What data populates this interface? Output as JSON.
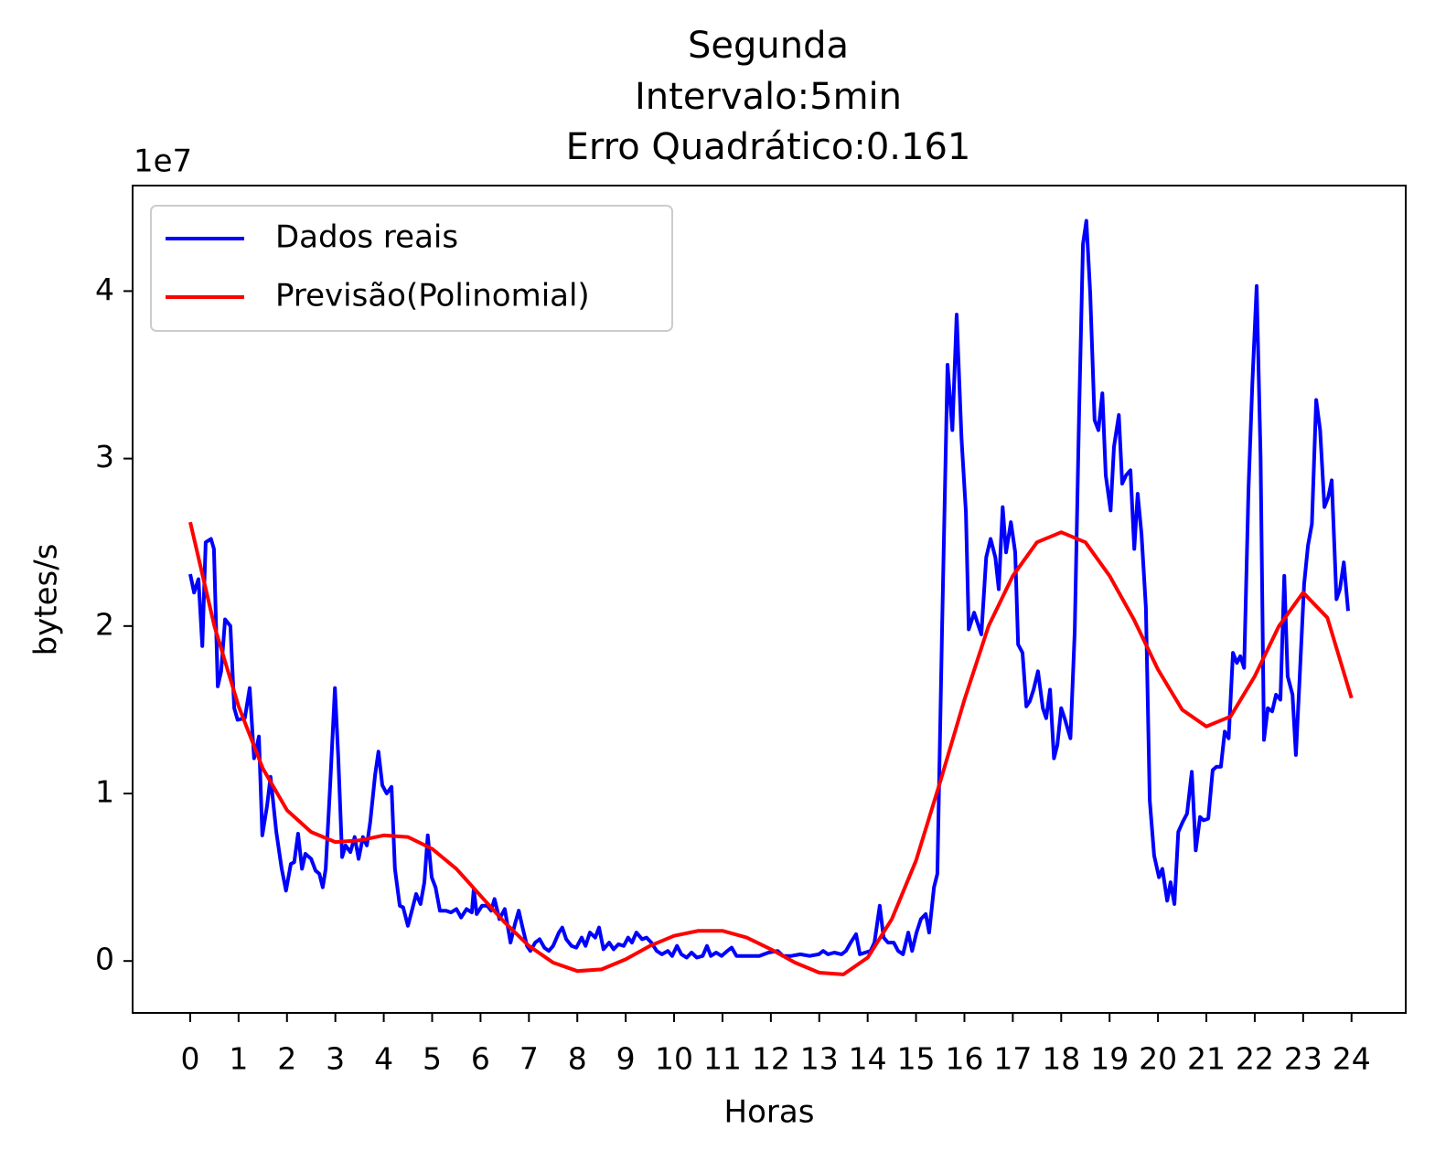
{
  "chart_data": {
    "type": "line",
    "title": [
      "Segunda",
      "Intervalo:5min",
      "Erro Quadrático:0.161"
    ],
    "x_label": "Horas",
    "y_label": "bytes/s",
    "y_offset_text": "1e7",
    "xlim": [
      -1.19,
      25.12
    ],
    "ylim": [
      -0.31,
      4.63
    ],
    "xticks": [
      0,
      1,
      2,
      3,
      4,
      5,
      6,
      7,
      8,
      9,
      10,
      11,
      12,
      13,
      14,
      15,
      16,
      17,
      18,
      19,
      20,
      21,
      22,
      23,
      24
    ],
    "yticks": [
      0,
      1,
      2,
      3,
      4
    ],
    "grid": false,
    "legend": "upper left",
    "series": [
      {
        "name": "Dados reais",
        "color": "#0000ff",
        "x": [
          0,
          0.08,
          0.17,
          0.25,
          0.32,
          0.43,
          0.49,
          0.57,
          0.64,
          0.72,
          0.83,
          0.91,
          0.98,
          1.13,
          1.23,
          1.32,
          1.42,
          1.49,
          1.59,
          1.66,
          1.78,
          1.89,
          1.98,
          2.08,
          2.15,
          2.23,
          2.31,
          2.38,
          2.5,
          2.59,
          2.67,
          2.74,
          2.8,
          2.89,
          2.99,
          3.06,
          3.14,
          3.21,
          3.31,
          3.4,
          3.48,
          3.57,
          3.65,
          3.72,
          3.82,
          3.89,
          3.97,
          4.06,
          4.16,
          4.23,
          4.33,
          4.4,
          4.5,
          4.59,
          4.67,
          4.76,
          4.84,
          4.91,
          4.99,
          5.07,
          5.16,
          5.29,
          5.39,
          5.5,
          5.6,
          5.71,
          5.82,
          5.86,
          5.92,
          6.03,
          6.14,
          6.22,
          6.29,
          6.39,
          6.5,
          6.62,
          6.71,
          6.79,
          6.86,
          6.96,
          7.03,
          7.13,
          7.22,
          7.32,
          7.41,
          7.5,
          7.62,
          7.69,
          7.77,
          7.88,
          7.98,
          8.09,
          8.17,
          8.26,
          8.37,
          8.45,
          8.54,
          8.66,
          8.75,
          8.85,
          8.96,
          9.05,
          9.13,
          9.22,
          9.34,
          9.43,
          9.53,
          9.64,
          9.75,
          9.87,
          9.96,
          10.06,
          10.15,
          10.26,
          10.36,
          10.47,
          10.59,
          10.68,
          10.76,
          10.87,
          10.98,
          11.1,
          11.19,
          11.29,
          11.42,
          11.57,
          11.76,
          11.95,
          12.14,
          12.25,
          12.42,
          12.61,
          12.8,
          12.99,
          13.08,
          13.18,
          13.31,
          13.46,
          13.55,
          13.65,
          13.76,
          13.84,
          13.95,
          14.06,
          14.14,
          14.25,
          14.33,
          14.42,
          14.54,
          14.63,
          14.73,
          14.84,
          14.92,
          15.01,
          15.1,
          15.2,
          15.27,
          15.37,
          15.44,
          15.54,
          15.65,
          15.75,
          15.84,
          15.94,
          16.03,
          16.09,
          16.2,
          16.35,
          16.45,
          16.54,
          16.64,
          16.71,
          16.79,
          16.86,
          16.96,
          17.05,
          17.11,
          17.2,
          17.28,
          17.35,
          17.43,
          17.52,
          17.62,
          17.69,
          17.77,
          17.85,
          17.92,
          18.0,
          18.07,
          18.19,
          18.28,
          18.37,
          18.45,
          18.52,
          18.6,
          18.69,
          18.77,
          18.85,
          18.92,
          19.02,
          19.09,
          19.19,
          19.26,
          19.34,
          19.43,
          19.51,
          19.58,
          19.66,
          19.75,
          19.83,
          19.92,
          20.02,
          20.09,
          20.19,
          20.26,
          20.34,
          20.42,
          20.51,
          20.6,
          20.7,
          20.78,
          20.87,
          20.94,
          21.04,
          21.13,
          21.21,
          21.3,
          21.38,
          21.46,
          21.55,
          21.63,
          21.7,
          21.78,
          21.87,
          21.95,
          22.04,
          22.12,
          22.19,
          22.27,
          22.36,
          22.44,
          22.53,
          22.61,
          22.68,
          22.78,
          22.85,
          22.93,
          23.02,
          23.1,
          23.18,
          23.27,
          23.35,
          23.44,
          23.52,
          23.59,
          23.69,
          23.76,
          23.84,
          23.93
        ],
        "values": [
          2.31,
          2.2,
          2.28,
          1.88,
          2.5,
          2.52,
          2.46,
          1.64,
          1.73,
          2.04,
          2.0,
          1.51,
          1.44,
          1.45,
          1.63,
          1.21,
          1.34,
          0.75,
          0.93,
          1.1,
          0.77,
          0.55,
          0.42,
          0.58,
          0.59,
          0.76,
          0.55,
          0.64,
          0.61,
          0.54,
          0.52,
          0.44,
          0.55,
          1.04,
          1.63,
          1.21,
          0.62,
          0.69,
          0.65,
          0.74,
          0.61,
          0.74,
          0.69,
          0.83,
          1.11,
          1.25,
          1.05,
          1.0,
          1.04,
          0.55,
          0.33,
          0.32,
          0.21,
          0.31,
          0.4,
          0.34,
          0.47,
          0.75,
          0.5,
          0.44,
          0.3,
          0.3,
          0.29,
          0.31,
          0.26,
          0.31,
          0.29,
          0.43,
          0.28,
          0.33,
          0.33,
          0.3,
          0.37,
          0.25,
          0.31,
          0.11,
          0.22,
          0.3,
          0.21,
          0.09,
          0.06,
          0.11,
          0.13,
          0.08,
          0.06,
          0.09,
          0.17,
          0.2,
          0.13,
          0.09,
          0.08,
          0.14,
          0.09,
          0.17,
          0.14,
          0.2,
          0.07,
          0.11,
          0.07,
          0.1,
          0.09,
          0.14,
          0.11,
          0.17,
          0.13,
          0.14,
          0.11,
          0.06,
          0.04,
          0.06,
          0.03,
          0.09,
          0.04,
          0.02,
          0.05,
          0.02,
          0.03,
          0.09,
          0.03,
          0.05,
          0.03,
          0.06,
          0.08,
          0.03,
          0.03,
          0.03,
          0.03,
          0.05,
          0.06,
          0.03,
          0.03,
          0.04,
          0.03,
          0.04,
          0.06,
          0.04,
          0.05,
          0.04,
          0.06,
          0.11,
          0.16,
          0.04,
          0.05,
          0.06,
          0.11,
          0.33,
          0.14,
          0.11,
          0.11,
          0.06,
          0.04,
          0.17,
          0.06,
          0.17,
          0.25,
          0.28,
          0.17,
          0.44,
          0.52,
          2.0,
          3.56,
          3.17,
          3.86,
          3.12,
          2.68,
          1.98,
          2.08,
          1.95,
          2.41,
          2.52,
          2.41,
          2.22,
          2.71,
          2.44,
          2.62,
          2.44,
          1.89,
          1.84,
          1.52,
          1.55,
          1.62,
          1.73,
          1.51,
          1.45,
          1.62,
          1.21,
          1.29,
          1.51,
          1.45,
          1.33,
          1.97,
          3.28,
          4.28,
          4.42,
          3.99,
          3.23,
          3.17,
          3.39,
          2.9,
          2.69,
          3.07,
          3.26,
          2.85,
          2.9,
          2.93,
          2.46,
          2.79,
          2.55,
          2.11,
          0.96,
          0.63,
          0.5,
          0.55,
          0.36,
          0.47,
          0.34,
          0.77,
          0.83,
          0.88,
          1.13,
          0.66,
          0.86,
          0.84,
          0.85,
          1.14,
          1.16,
          1.16,
          1.37,
          1.33,
          1.84,
          1.78,
          1.82,
          1.75,
          2.82,
          3.45,
          4.03,
          3.01,
          1.32,
          1.51,
          1.49,
          1.59,
          1.56,
          2.3,
          1.7,
          1.59,
          1.23,
          1.7,
          2.25,
          2.48,
          2.61,
          3.35,
          3.17,
          2.71,
          2.77,
          2.87,
          2.16,
          2.22,
          2.38,
          2.09
        ]
      },
      {
        "name": "Previsão(Polinomial)",
        "color": "#ff0000",
        "x": [
          0,
          0.5,
          1,
          1.5,
          2,
          2.5,
          3,
          3.5,
          4,
          4.5,
          5,
          5.5,
          6,
          6.5,
          7,
          7.5,
          8,
          8.5,
          9,
          9.5,
          10,
          10.5,
          11,
          11.5,
          12,
          12.5,
          13,
          13.5,
          14,
          14.5,
          15,
          15.5,
          16,
          16.5,
          17,
          17.5,
          18,
          18.5,
          19,
          19.5,
          20,
          20.5,
          21,
          21.5,
          22,
          22.5,
          23,
          23.5,
          24
        ],
        "values": [
          2.62,
          2.0,
          1.52,
          1.15,
          0.9,
          0.77,
          0.71,
          0.72,
          0.75,
          0.74,
          0.67,
          0.55,
          0.39,
          0.23,
          0.09,
          -0.01,
          -0.06,
          -0.05,
          0.01,
          0.09,
          0.15,
          0.18,
          0.18,
          0.14,
          0.07,
          -0.01,
          -0.07,
          -0.08,
          0.02,
          0.25,
          0.6,
          1.07,
          1.56,
          2.0,
          2.3,
          2.5,
          2.56,
          2.5,
          2.3,
          2.04,
          1.74,
          1.5,
          1.4,
          1.46,
          1.7,
          2.0,
          2.2,
          2.05,
          1.57
        ]
      }
    ]
  }
}
